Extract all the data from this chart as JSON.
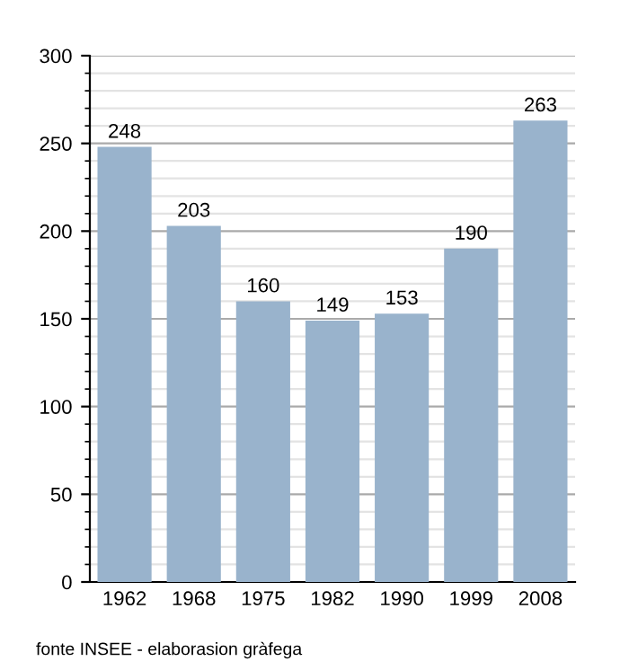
{
  "chart_data": {
    "type": "bar",
    "categories": [
      "1962",
      "1968",
      "1975",
      "1982",
      "1990",
      "1999",
      "2008"
    ],
    "values": [
      248,
      203,
      160,
      149,
      153,
      190,
      263
    ],
    "color": "#99b3cc",
    "data_labels": true,
    "ylim": [
      0,
      300
    ],
    "yticks": [
      0,
      50,
      100,
      150,
      200,
      250,
      300
    ],
    "grid": "y",
    "annotations": [
      "fonte INSEE - elaborasion gràfega"
    ]
  }
}
